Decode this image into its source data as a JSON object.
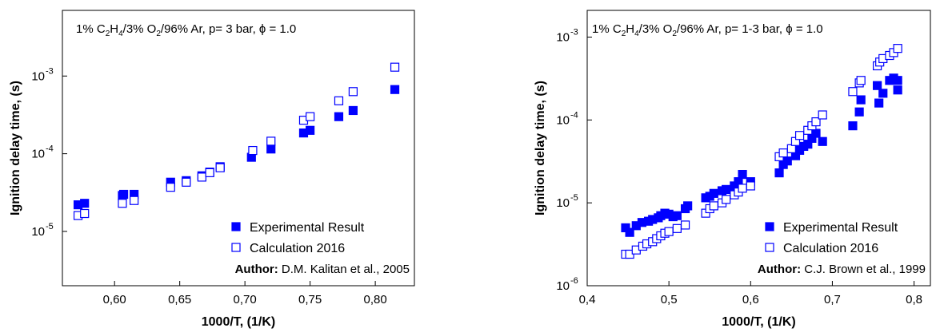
{
  "chart_data": [
    {
      "type": "scatter",
      "title": [
        "1% C",
        "2",
        "H",
        "4",
        "/3% O",
        "2",
        "/96% Ar, p= 3 bar, ϕ = 1.0"
      ],
      "title_subscripts": [
        1,
        3,
        5
      ],
      "x_label": "1000/T, (1/K)",
      "y_label": "Ignition delay time, (s)",
      "author_label": "Author:",
      "author": "D.M. Kalitan et al., 2005",
      "log_y": true,
      "legend": "lower right",
      "xlim": [
        0.56,
        0.83
      ],
      "ylim": [
        2e-06,
        0.007
      ],
      "xticks": [
        {
          "value": 0.6,
          "label": "0,60"
        },
        {
          "value": 0.65,
          "label": "0,65"
        },
        {
          "value": 0.7,
          "label": "0,70"
        },
        {
          "value": 0.75,
          "label": "0,75"
        },
        {
          "value": 0.8,
          "label": "0,80"
        }
      ],
      "yticks": [
        {
          "value": 1e-05,
          "label": "10",
          "exponent": "-5"
        },
        {
          "value": 0.0001,
          "label": "10",
          "exponent": "-4"
        },
        {
          "value": 0.001,
          "label": "10",
          "exponent": "-3"
        }
      ],
      "series": [
        {
          "name": "Experimental Result",
          "color": "#0000ff",
          "marker": "filled",
          "x": [
            0.572,
            0.577,
            0.606,
            0.607,
            0.615,
            0.643,
            0.655,
            0.667,
            0.673,
            0.681,
            0.705,
            0.72,
            0.745,
            0.75,
            0.772,
            0.783,
            0.815
          ],
          "values": [
            2.2e-05,
            2.3e-05,
            2.9e-05,
            3e-05,
            3e-05,
            4.3e-05,
            4.5e-05,
            5.2e-05,
            5.8e-05,
            6.8e-05,
            9e-05,
            0.000115,
            0.000185,
            0.0002,
            0.0003,
            0.00036,
            0.00067
          ]
        },
        {
          "name": "Calculation 2016",
          "color": "#0000ff",
          "marker": "open",
          "x": [
            0.572,
            0.577,
            0.606,
            0.615,
            0.643,
            0.655,
            0.667,
            0.673,
            0.681,
            0.706,
            0.72,
            0.745,
            0.75,
            0.772,
            0.783,
            0.815
          ],
          "values": [
            1.6e-05,
            1.7e-05,
            2.3e-05,
            2.5e-05,
            3.7e-05,
            4.3e-05,
            5e-05,
            5.7e-05,
            6.6e-05,
            0.00011,
            0.000145,
            0.00027,
            0.0003,
            0.00048,
            0.00063,
            0.0013
          ]
        }
      ]
    },
    {
      "type": "scatter",
      "title": [
        "1% C",
        "2",
        "H",
        "4",
        "/3% O",
        "2",
        "/96% Ar, p= 1-3 bar, ϕ = 1.0"
      ],
      "title_subscripts": [
        1,
        3,
        5
      ],
      "x_label": "1000/T, (1/K)",
      "y_label": "Ignition delay time, (s)",
      "author_label": "Author:",
      "author": "C.J. Brown et al., 1999",
      "log_y": true,
      "legend": "lower right",
      "xlim": [
        0.4,
        0.82
      ],
      "ylim": [
        1e-06,
        0.0021
      ],
      "xticks": [
        {
          "value": 0.4,
          "label": "0,4"
        },
        {
          "value": 0.5,
          "label": "0,5"
        },
        {
          "value": 0.6,
          "label": "0,6"
        },
        {
          "value": 0.7,
          "label": "0,7"
        },
        {
          "value": 0.8,
          "label": "0,8"
        }
      ],
      "yticks": [
        {
          "value": 1e-06,
          "label": "10",
          "exponent": "-6"
        },
        {
          "value": 1e-05,
          "label": "10",
          "exponent": "-5"
        },
        {
          "value": 0.0001,
          "label": "10",
          "exponent": "-4"
        },
        {
          "value": 0.001,
          "label": "10",
          "exponent": "-3"
        }
      ],
      "series": [
        {
          "name": "Experimental Result",
          "color": "#0000ff",
          "marker": "filled",
          "x": [
            0.447,
            0.452,
            0.46,
            0.467,
            0.475,
            0.48,
            0.487,
            0.49,
            0.495,
            0.5,
            0.505,
            0.51,
            0.52,
            0.523,
            0.545,
            0.55,
            0.555,
            0.565,
            0.57,
            0.58,
            0.585,
            0.59,
            0.6,
            0.635,
            0.64,
            0.645,
            0.655,
            0.66,
            0.665,
            0.67,
            0.675,
            0.68,
            0.688,
            0.725,
            0.733,
            0.735,
            0.755,
            0.757,
            0.762,
            0.77,
            0.775,
            0.78,
            0.78
          ],
          "values": [
            5e-06,
            4.4e-06,
            5.3e-06,
            5.8e-06,
            6e-06,
            6.3e-06,
            6.6e-06,
            7e-06,
            7.5e-06,
            7.3e-06,
            6.8e-06,
            7e-06,
            8.5e-06,
            9.2e-06,
            1.15e-05,
            1.2e-05,
            1.3e-05,
            1.4e-05,
            1.45e-05,
            1.6e-05,
            1.8e-05,
            2.2e-05,
            1.8e-05,
            2.3e-05,
            2.9e-05,
            3.2e-05,
            3.7e-05,
            4.3e-05,
            4.8e-05,
            5.1e-05,
            6e-05,
            6.9e-05,
            5.5e-05,
            8.5e-05,
            0.000125,
            0.000175,
            0.00026,
            0.00016,
            0.00021,
            0.0003,
            0.00032,
            0.0003,
            0.00023
          ]
        },
        {
          "name": "Calculation 2016",
          "color": "#0000ff",
          "marker": "open",
          "x": [
            0.447,
            0.452,
            0.46,
            0.468,
            0.473,
            0.48,
            0.485,
            0.49,
            0.495,
            0.5,
            0.51,
            0.52,
            0.545,
            0.55,
            0.555,
            0.565,
            0.57,
            0.58,
            0.585,
            0.59,
            0.6,
            0.635,
            0.64,
            0.65,
            0.655,
            0.66,
            0.67,
            0.675,
            0.68,
            0.688,
            0.725,
            0.733,
            0.735,
            0.755,
            0.758,
            0.762,
            0.77,
            0.775,
            0.78
          ],
          "values": [
            2.4e-06,
            2.4e-06,
            2.7e-06,
            3e-06,
            3.2e-06,
            3.4e-06,
            3.7e-06,
            4e-06,
            4.3e-06,
            4.5e-06,
            4.9e-06,
            5.4e-06,
            7.5e-06,
            8.5e-06,
            9.2e-06,
            1e-05,
            1.1e-05,
            1.25e-05,
            1.35e-05,
            1.5e-05,
            1.6e-05,
            3.6e-05,
            4e-05,
            4.5e-05,
            5.5e-05,
            6.5e-05,
            7.5e-05,
            8.5e-05,
            9.5e-05,
            0.000115,
            0.00022,
            0.00028,
            0.0003,
            0.00045,
            0.0005,
            0.00055,
            0.0006,
            0.00065,
            0.00073
          ]
        }
      ]
    }
  ]
}
